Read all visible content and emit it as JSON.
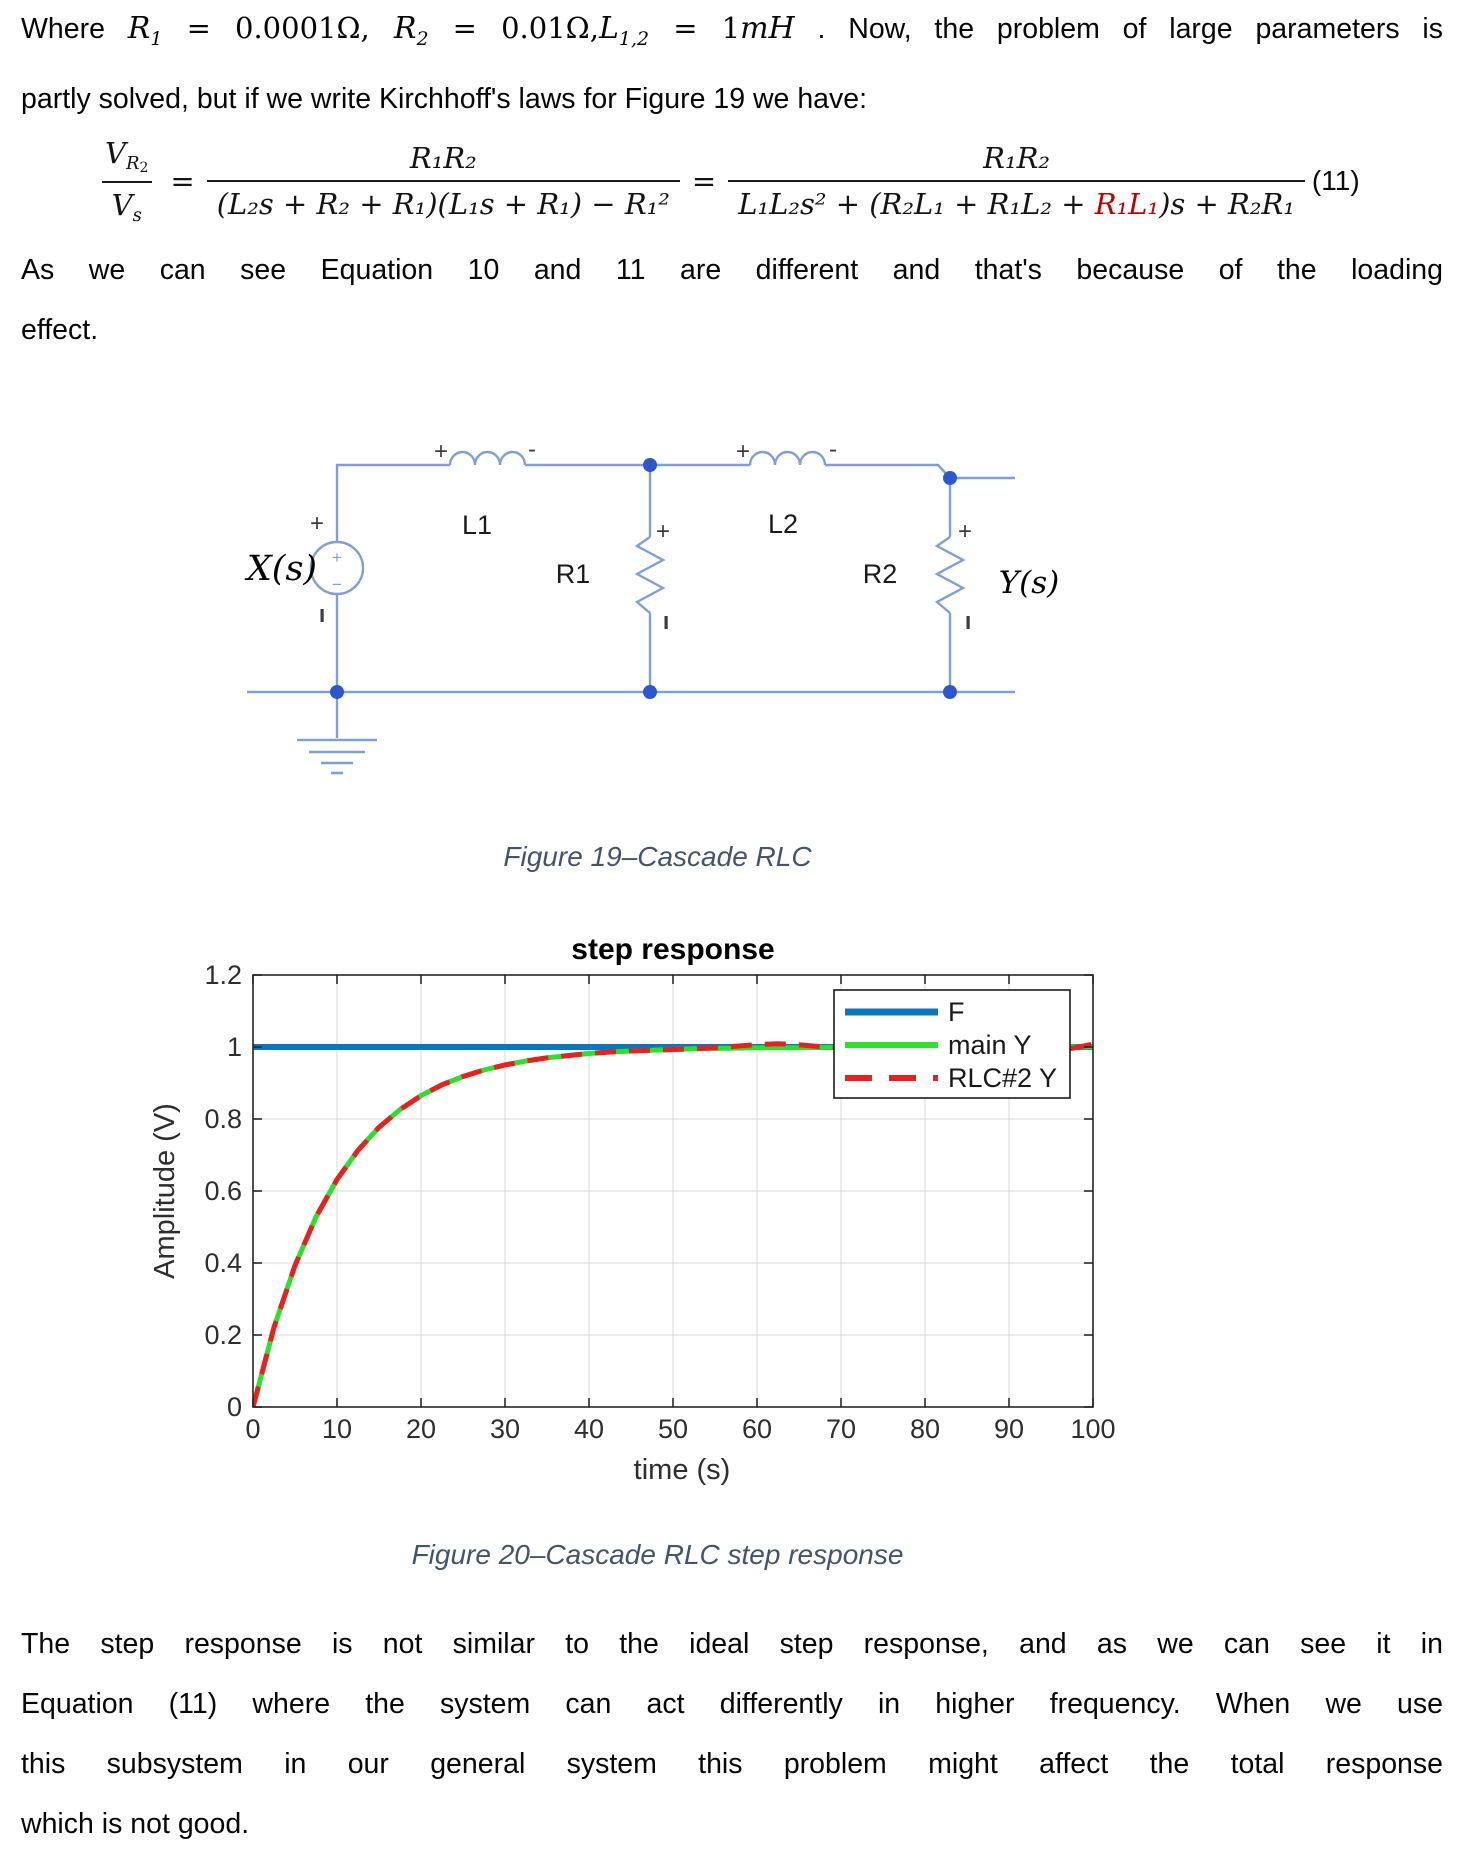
{
  "para1": {
    "lines": [
      {
        "justify": true,
        "segments": [
          {
            "t": "Where ",
            "c": "b"
          },
          {
            "t": "R",
            "c": "v"
          },
          {
            "t": "1",
            "c": "s"
          },
          {
            "t": " = 0.0001Ω, ",
            "c": "n"
          },
          {
            "t": "R",
            "c": "v"
          },
          {
            "t": "2",
            "c": "s"
          },
          {
            "t": " = 0.01Ω,",
            "c": "n"
          },
          {
            "t": "L",
            "c": "v"
          },
          {
            "t": "1,2",
            "c": "s"
          },
          {
            "t": " = 1",
            "c": "n"
          },
          {
            "t": "mH",
            "c": "v"
          },
          {
            "t": " . Now, the problem of large parameters is",
            "c": "b"
          }
        ]
      },
      {
        "justify": false,
        "segments": [
          {
            "t": "partly solved, but if we write Kirchhoff's laws for Figure 19 we have:",
            "c": "b"
          }
        ]
      }
    ]
  },
  "equation": {
    "lhs_num_v": "V",
    "lhs_num_sub": "R",
    "lhs_num_subsub": "2",
    "lhs_den_v": "V",
    "lhs_den_sub": "s",
    "eq1": "=",
    "f1_num": "R₁R₂",
    "f1_den": "(L₂s + R₂ + R₁)(L₁s + R₁) − R₁²",
    "eq2": "=",
    "f2_num": "R₁R₂",
    "f2_den_a": "L₁L₂s² + (R₂L₁ + R₁L₂ + ",
    "f2_den_red": "R₁L₁",
    "f2_den_b": ")s + R₂R₁",
    "number": "(11)"
  },
  "para2": {
    "lines": [
      {
        "justify": true,
        "segments": [
          {
            "t": "As we can see Equation 10 and 11 are different and that's because of the loading",
            "c": "b"
          }
        ]
      },
      {
        "justify": false,
        "segments": [
          {
            "t": "effect.",
            "c": "b"
          }
        ]
      }
    ]
  },
  "circuit": {
    "source_label": "X(s)",
    "output_label": "Y(s)",
    "l1_label": "L1",
    "r1_label": "R1",
    "l2_label": "L2",
    "r2_label": "R2",
    "l1_plus": "+",
    "l1_minus": "-",
    "l2_plus": "+",
    "l2_minus": "-",
    "r1_plus": "+",
    "r2_plus": "+",
    "source_plus": "+",
    "source_inner_plus": "+",
    "source_inner_minus": "−",
    "wire_color": "#7f9fd6",
    "node_color": "#2d57cc"
  },
  "figure19_caption": "Figure 19–Cascade RLC",
  "chart_data": {
    "type": "line",
    "title": "step response",
    "xlabel": "time (s)",
    "ylabel": "Amplitude (V)",
    "xlim": [
      0,
      100
    ],
    "ylim": [
      0,
      1.2
    ],
    "xticks": [
      0,
      10,
      20,
      30,
      40,
      50,
      60,
      70,
      80,
      90,
      100
    ],
    "yticks": [
      0,
      0.2,
      0.4,
      0.6,
      0.8,
      1,
      1.2
    ],
    "grid": true,
    "legend_position": "upper right",
    "x": [
      0,
      2.5,
      5,
      7.5,
      10,
      12.5,
      15,
      17.5,
      20,
      22.5,
      25,
      27.5,
      30,
      32.5,
      35,
      37.5,
      40,
      42.5,
      45,
      47.5,
      50,
      52.5,
      55,
      57.5,
      60,
      62.5,
      65,
      67.5,
      70,
      72.5,
      75,
      77.5,
      80,
      82.5,
      85,
      87.5,
      90,
      92.5,
      95,
      97.5,
      100
    ],
    "series": [
      {
        "name": "F",
        "color": "#0b76bd",
        "style": "solid",
        "width": 6,
        "x": [
          0,
          100
        ],
        "values": [
          1,
          1
        ]
      },
      {
        "name": "main Y",
        "color": "#2ee02e",
        "style": "solid",
        "width": 5,
        "values": [
          0,
          0.221,
          0.393,
          0.528,
          0.632,
          0.713,
          0.777,
          0.826,
          0.865,
          0.895,
          0.918,
          0.936,
          0.95,
          0.961,
          0.97,
          0.976,
          0.982,
          0.986,
          0.989,
          0.991,
          0.993,
          0.995,
          0.996,
          0.997,
          0.998,
          0.998,
          0.998,
          0.999,
          0.999,
          0.999,
          0.999,
          1,
          1,
          1,
          1,
          1,
          1,
          1,
          1,
          1,
          1
        ]
      },
      {
        "name": "RLC#2 Y",
        "color": "#ea1f1f",
        "style": "dashed",
        "width": 5,
        "values": [
          0,
          0.221,
          0.393,
          0.528,
          0.632,
          0.713,
          0.777,
          0.826,
          0.865,
          0.895,
          0.918,
          0.936,
          0.95,
          0.961,
          0.97,
          0.976,
          0.982,
          0.986,
          0.989,
          0.991,
          0.993,
          0.995,
          0.998,
          1.002,
          1.007,
          1.009,
          1.006,
          1.001,
          0.999,
          0.999,
          1,
          1.001,
          1.001,
          1,
          0.999,
          0.998,
          0.997,
          0.995,
          0.994,
          0.996,
          1.008
        ]
      }
    ]
  },
  "figure20_caption": "Figure 20–Cascade RLC step response",
  "para3": {
    "lines": [
      {
        "justify": true,
        "segments": [
          {
            "t": "The step response is not similar to the ideal step response, and as we can see it in",
            "c": "b"
          }
        ]
      },
      {
        "justify": true,
        "segments": [
          {
            "t": "Equation (11) where the system can act differently in higher frequency. When we use",
            "c": "b"
          }
        ]
      },
      {
        "justify": true,
        "segments": [
          {
            "t": "this subsystem in our general system this problem might affect the total response",
            "c": "b"
          }
        ]
      },
      {
        "justify": false,
        "segments": [
          {
            "t": "which is not good.",
            "c": "b"
          }
        ]
      }
    ]
  }
}
